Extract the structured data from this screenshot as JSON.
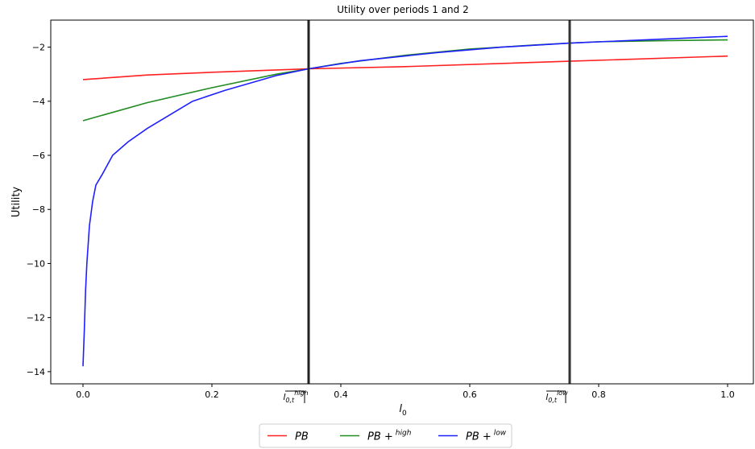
{
  "chart_data": {
    "type": "line",
    "title": "Utility over periods 1 and 2",
    "xlabel": "l",
    "xlabel_sub": "0",
    "ylabel": "Utility",
    "xlim": [
      -0.05,
      1.04
    ],
    "ylim": [
      -14.45,
      -1.0
    ],
    "xticks": [
      {
        "value": 0,
        "label": "0.0"
      },
      0.2,
      0.4,
      0.6,
      0.8,
      {
        "value": 1,
        "label": "1.0"
      }
    ],
    "yticks": [
      {
        "value": -2,
        "label": "−2"
      },
      {
        "value": -4,
        "label": "−4"
      },
      {
        "value": -6,
        "label": "−6"
      },
      {
        "value": -8,
        "label": "−8"
      },
      {
        "value": -10,
        "label": "−10"
      },
      {
        "value": -12,
        "label": "−12"
      },
      {
        "value": -14,
        "label": "−14"
      }
    ],
    "vlines": [
      {
        "x": 0.35,
        "label": "l",
        "sub": "0,t",
        "sup": "high",
        "color": "#222222"
      },
      {
        "x": 0.755,
        "label": "l",
        "sub": "0,t",
        "sup": "low",
        "color": "#333333"
      }
    ],
    "legend": "lower center",
    "series": [
      {
        "name": "PB",
        "color": "#ff2020",
        "x": [
          0,
          0.1,
          0.2,
          0.35,
          0.5,
          0.755,
          1.0
        ],
        "values": [
          -3.2,
          -3.03,
          -2.93,
          -2.8,
          -2.72,
          -2.52,
          -2.33
        ]
      },
      {
        "name": "PB +",
        "name_sup": "high",
        "color": "#228b22",
        "x": [
          0,
          0.1,
          0.2,
          0.3,
          0.35,
          0.4,
          0.5,
          0.6,
          0.7,
          0.755,
          0.8,
          0.9,
          1.0
        ],
        "values": [
          -4.72,
          -4.05,
          -3.5,
          -3.0,
          -2.8,
          -2.6,
          -2.3,
          -2.07,
          -1.92,
          -1.85,
          -1.8,
          -1.76,
          -1.73
        ]
      },
      {
        "name": "PB +",
        "name_sup": "low",
        "color": "#1f1fff",
        "x": [
          0,
          0.002,
          0.004,
          0.006,
          0.01,
          0.015,
          0.02,
          0.03,
          0.046,
          0.07,
          0.1,
          0.17,
          0.22,
          0.3,
          0.35,
          0.43,
          0.55,
          0.65,
          0.755,
          0.9,
          1.0
        ],
        "values": [
          -13.8,
          -12.5,
          -11.0,
          -10.0,
          -8.6,
          -7.7,
          -7.1,
          -6.7,
          -6.0,
          -5.5,
          -5.0,
          -4.0,
          -3.6,
          -3.05,
          -2.8,
          -2.5,
          -2.2,
          -2.0,
          -1.85,
          -1.7,
          -1.6
        ]
      }
    ]
  }
}
